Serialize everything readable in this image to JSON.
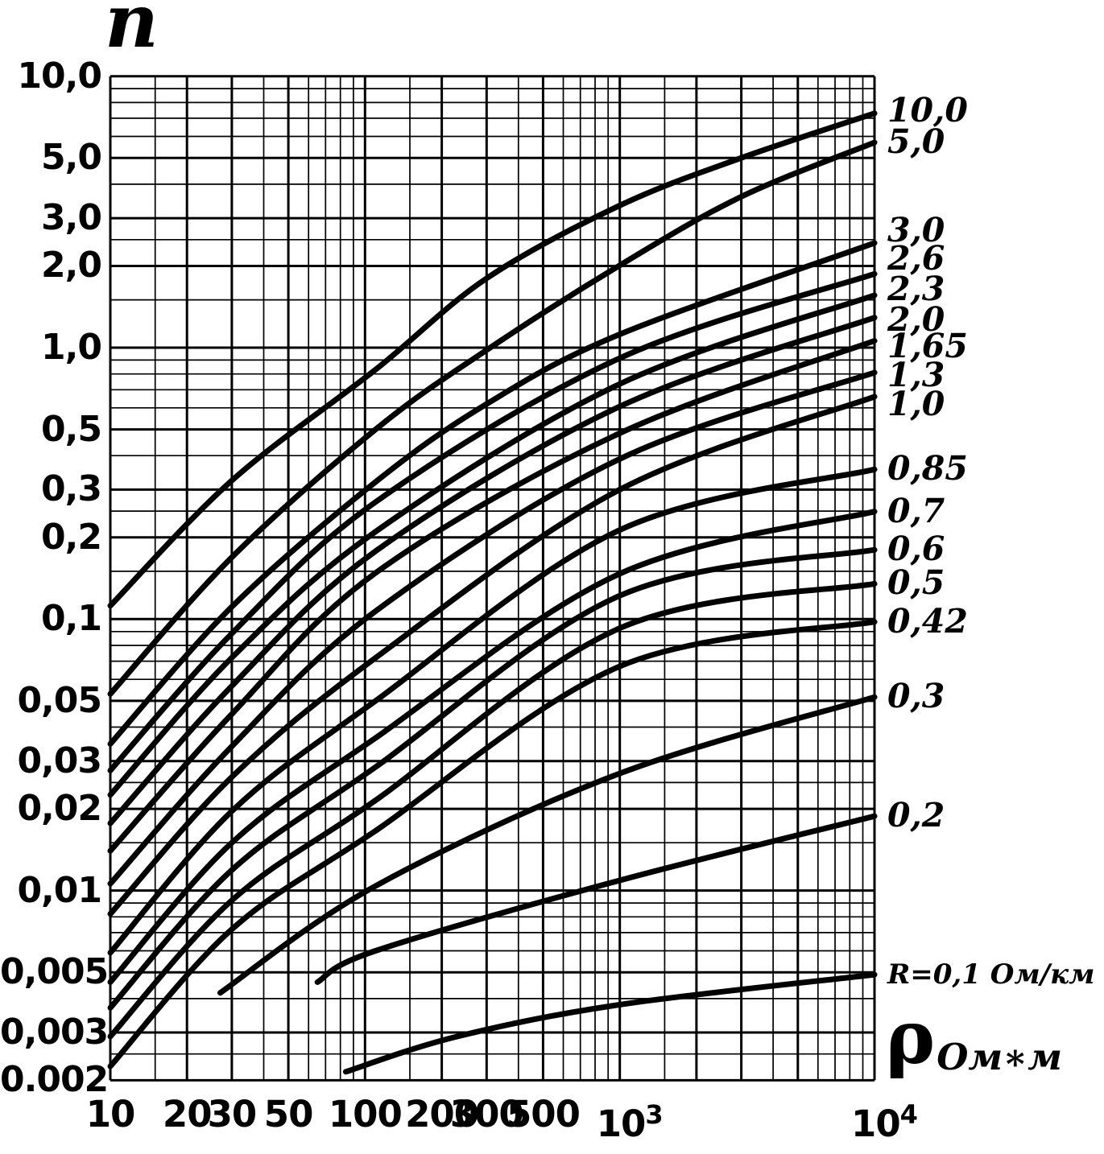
{
  "ui": {
    "title": "n",
    "x_unit_symbol": "ρ",
    "x_unit_sub": "Ом∗м"
  },
  "chart_data": {
    "type": "line",
    "x_log": true,
    "y_log": true,
    "xlim": [
      10,
      10000
    ],
    "ylim": [
      0.002,
      10
    ],
    "xlabel": "ρ, Ом∗м",
    "ylabel": "n",
    "grid": "log-log both axes, thick lines at 1-2-3-5 per decade",
    "legend_position": "right edge of curves",
    "x_axis_ticks": [
      {
        "label": "10",
        "value": 10
      },
      {
        "label": "20",
        "value": 20
      },
      {
        "label": "30",
        "value": 30
      },
      {
        "label": "50",
        "value": 50
      },
      {
        "label": "100",
        "value": 100
      },
      {
        "label": "200",
        "value": 200
      },
      {
        "label": "300",
        "value": 300
      },
      {
        "label": "500",
        "value": 500
      },
      {
        "label": "10",
        "exp": "3",
        "value": 1000
      },
      {
        "label": "10",
        "exp": "4",
        "value": 10000
      }
    ],
    "y_axis_ticks": [
      {
        "label": "10,0",
        "value": 10
      },
      {
        "label": "5,0",
        "value": 5
      },
      {
        "label": "3,0",
        "value": 3
      },
      {
        "label": "2,0",
        "value": 2
      },
      {
        "label": "1,0",
        "value": 1
      },
      {
        "label": "0,5",
        "value": 0.5
      },
      {
        "label": "0,3",
        "value": 0.3
      },
      {
        "label": "0,2",
        "value": 0.2
      },
      {
        "label": "0,1",
        "value": 0.1
      },
      {
        "label": "0,05",
        "value": 0.05
      },
      {
        "label": "0,03",
        "value": 0.03
      },
      {
        "label": "0,02",
        "value": 0.02
      },
      {
        "label": "0,01",
        "value": 0.01
      },
      {
        "label": "0,005",
        "value": 0.005
      },
      {
        "label": "0,003",
        "value": 0.003
      },
      {
        "label": "0.002",
        "value": 0.002
      }
    ],
    "series": [
      {
        "label": "10,0",
        "R": 10,
        "label_n": 7.45,
        "points": [
          [
            10,
            0.112
          ],
          [
            30,
            0.324
          ],
          [
            110,
            0.83
          ],
          [
            300,
            1.8
          ],
          [
            1000,
            3.34
          ],
          [
            3000,
            5.0
          ],
          [
            10000,
            7.3
          ]
        ]
      },
      {
        "label": "5,0",
        "R": 5,
        "label_n": 5.7,
        "points": [
          [
            10,
            0.053
          ],
          [
            30,
            0.169
          ],
          [
            110,
            0.5
          ],
          [
            300,
            0.98
          ],
          [
            1000,
            2.01
          ],
          [
            3000,
            3.6
          ],
          [
            10000,
            5.7
          ]
        ]
      },
      {
        "label": "3,0",
        "R": 3,
        "label_n": 2.69,
        "points": [
          [
            10,
            0.0347
          ],
          [
            30,
            0.111
          ],
          [
            110,
            0.32
          ],
          [
            300,
            0.62
          ],
          [
            1000,
            1.12
          ],
          [
            10000,
            2.43
          ]
        ]
      },
      {
        "label": "2,6",
        "R": 2.6,
        "label_n": 2.12,
        "points": [
          [
            10,
            0.0277
          ],
          [
            30,
            0.0885
          ],
          [
            110,
            0.27
          ],
          [
            1000,
            0.915
          ],
          [
            10000,
            1.87
          ]
        ]
      },
      {
        "label": "2,3",
        "R": 2.3,
        "label_n": 1.64,
        "points": [
          [
            10,
            0.0225
          ],
          [
            30,
            0.0721
          ],
          [
            110,
            0.21
          ],
          [
            1000,
            0.735
          ],
          [
            10000,
            1.56
          ]
        ]
      },
      {
        "label": "2,0",
        "R": 2.0,
        "label_n": 1.26,
        "points": [
          [
            10,
            0.0177
          ],
          [
            30,
            0.0567
          ],
          [
            110,
            0.178
          ],
          [
            1000,
            0.607
          ],
          [
            10000,
            1.29
          ]
        ]
      },
      {
        "label": "1,65",
        "R": 1.65,
        "label_n": 1.01,
        "points": [
          [
            10,
            0.014
          ],
          [
            30,
            0.0447
          ],
          [
            110,
            0.148
          ],
          [
            1000,
            0.484
          ],
          [
            10000,
            1.06
          ]
        ]
      },
      {
        "label": "1,3",
        "R": 1.3,
        "label_n": 0.79,
        "points": [
          [
            10,
            0.0106
          ],
          [
            30,
            0.034
          ],
          [
            110,
            0.107
          ],
          [
            1000,
            0.389
          ],
          [
            10000,
            0.81
          ]
        ]
      },
      {
        "label": "1,0",
        "R": 1.0,
        "label_n": 0.615,
        "points": [
          [
            10,
            0.0082
          ],
          [
            30,
            0.0262
          ],
          [
            110,
            0.072
          ],
          [
            1000,
            0.3
          ],
          [
            10000,
            0.66
          ]
        ]
      },
      {
        "label": "0,85",
        "R": 0.85,
        "label_n": 0.356,
        "points": [
          [
            10,
            0.0059
          ],
          [
            30,
            0.0196
          ],
          [
            110,
            0.05
          ],
          [
            1000,
            0.213
          ],
          [
            10000,
            0.356
          ]
        ]
      },
      {
        "label": "0,7",
        "R": 0.7,
        "label_n": 0.249,
        "points": [
          [
            10,
            0.0046
          ],
          [
            30,
            0.015
          ],
          [
            110,
            0.0365
          ],
          [
            1000,
            0.147
          ],
          [
            10000,
            0.249
          ]
        ]
      },
      {
        "label": "0,6",
        "R": 0.6,
        "label_n": 0.18,
        "points": [
          [
            10,
            0.0037
          ],
          [
            30,
            0.0119
          ],
          [
            110,
            0.0285
          ],
          [
            1000,
            0.122
          ],
          [
            10000,
            0.18
          ]
        ]
      },
      {
        "label": "0,5",
        "R": 0.5,
        "label_n": 0.135,
        "points": [
          [
            10,
            0.0029
          ],
          [
            30,
            0.0092
          ],
          [
            110,
            0.0215
          ],
          [
            1000,
            0.0926
          ],
          [
            10000,
            0.135
          ]
        ]
      },
      {
        "label": "0,42",
        "R": 0.42,
        "label_n": 0.0977,
        "points": [
          [
            10,
            0.00225
          ],
          [
            30,
            0.0072
          ],
          [
            110,
            0.0166
          ],
          [
            1000,
            0.067
          ],
          [
            10000,
            0.0977
          ]
        ]
      },
      {
        "label": "0,3",
        "R": 0.3,
        "label_n": 0.0516,
        "points": [
          [
            27,
            0.0042
          ],
          [
            110,
            0.0104
          ],
          [
            1000,
            0.027
          ],
          [
            10000,
            0.0516
          ]
        ]
      },
      {
        "label": "0,2",
        "R": 0.2,
        "label_n": 0.0188,
        "points": [
          [
            65,
            0.0046
          ],
          [
            110,
            0.006
          ],
          [
            1000,
            0.0109
          ],
          [
            10000,
            0.0188
          ]
        ]
      },
      {
        "label": "R=0,1 Ом/км",
        "R": 0.1,
        "label_n": 0.0049,
        "points": [
          [
            84,
            0.00215
          ],
          [
            230,
            0.0029
          ],
          [
            1000,
            0.0038
          ],
          [
            10000,
            0.0049
          ]
        ]
      }
    ]
  }
}
